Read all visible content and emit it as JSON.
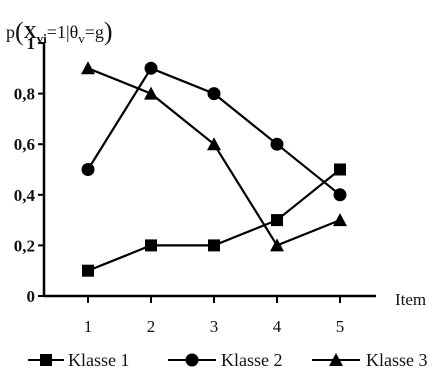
{
  "chart_data": {
    "type": "line",
    "title": "p(Xvi = 1|θv = g)",
    "title_parts": {
      "p": "p",
      "X": "X",
      "sub_vi": "vi",
      "eq1": "=1|",
      "theta": "θ",
      "sub_v": "v",
      "eq2": "=g"
    },
    "xlabel": "Item",
    "ylabel": "",
    "x": [
      1,
      2,
      3,
      4,
      5
    ],
    "x_tick_labels": [
      "1",
      "2",
      "3",
      "4",
      "5"
    ],
    "ylim": [
      0,
      1
    ],
    "y_ticks": [
      0,
      0.2,
      0.4,
      0.6,
      0.8,
      1
    ],
    "y_tick_labels": [
      "0",
      "0,2",
      "0,4",
      "0,6",
      "0,8",
      "1"
    ],
    "grid": false,
    "legend_position": "bottom",
    "series": [
      {
        "name": "Klasse 1",
        "marker": "square",
        "values": [
          0.1,
          0.2,
          0.2,
          0.3,
          0.5
        ]
      },
      {
        "name": "Klasse 2",
        "marker": "circle",
        "values": [
          0.5,
          0.9,
          0.8,
          0.6,
          0.4
        ]
      },
      {
        "name": "Klasse 3",
        "marker": "triangle",
        "values": [
          0.9,
          0.8,
          0.6,
          0.2,
          0.3
        ]
      }
    ],
    "colors": {
      "line": "#000000",
      "marker": "#000000"
    }
  }
}
